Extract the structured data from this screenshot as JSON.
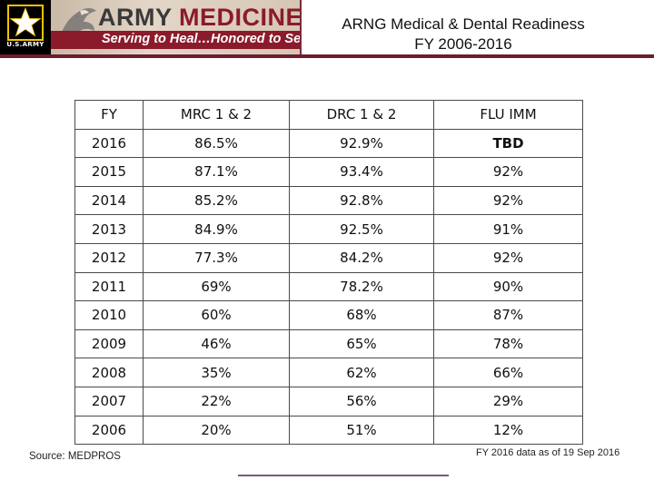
{
  "header": {
    "logo_text": "U.S.ARMY",
    "banner_word1": "ARMY",
    "banner_word2": "MEDICINE",
    "tagline": "Serving to Heal…Honored to Serve",
    "title_line1": "ARNG Medical & Dental Readiness",
    "title_line2": "FY 2006-2016",
    "colors": {
      "maroon": "#8b1a2b",
      "black": "#000000",
      "banner_bg": "#d6c6b4"
    },
    "icons": [
      "army-star-icon",
      "eagle-icon"
    ]
  },
  "table": {
    "headers": [
      "FY",
      "MRC 1 & 2",
      "DRC 1 & 2",
      "FLU IMM"
    ],
    "rows": [
      [
        "2016",
        "86.5%",
        "92.9%",
        "TBD"
      ],
      [
        "2015",
        "87.1%",
        "93.4%",
        "92%"
      ],
      [
        "2014",
        "85.2%",
        "92.8%",
        "92%"
      ],
      [
        "2013",
        "84.9%",
        "92.5%",
        "91%"
      ],
      [
        "2012",
        "77.3%",
        "84.2%",
        "92%"
      ],
      [
        "2011",
        "69%",
        "78.2%",
        "90%"
      ],
      [
        "2010",
        "60%",
        "68%",
        "87%"
      ],
      [
        "2009",
        "46%",
        "65%",
        "78%"
      ],
      [
        "2008",
        "35%",
        "62%",
        "66%"
      ],
      [
        "2007",
        "22%",
        "56%",
        "29%"
      ],
      [
        "2006",
        "20%",
        "51%",
        "12%"
      ]
    ]
  },
  "footer": {
    "source": "Source: MEDPROS",
    "note": "FY 2016 data as of 19 Sep 2016"
  }
}
